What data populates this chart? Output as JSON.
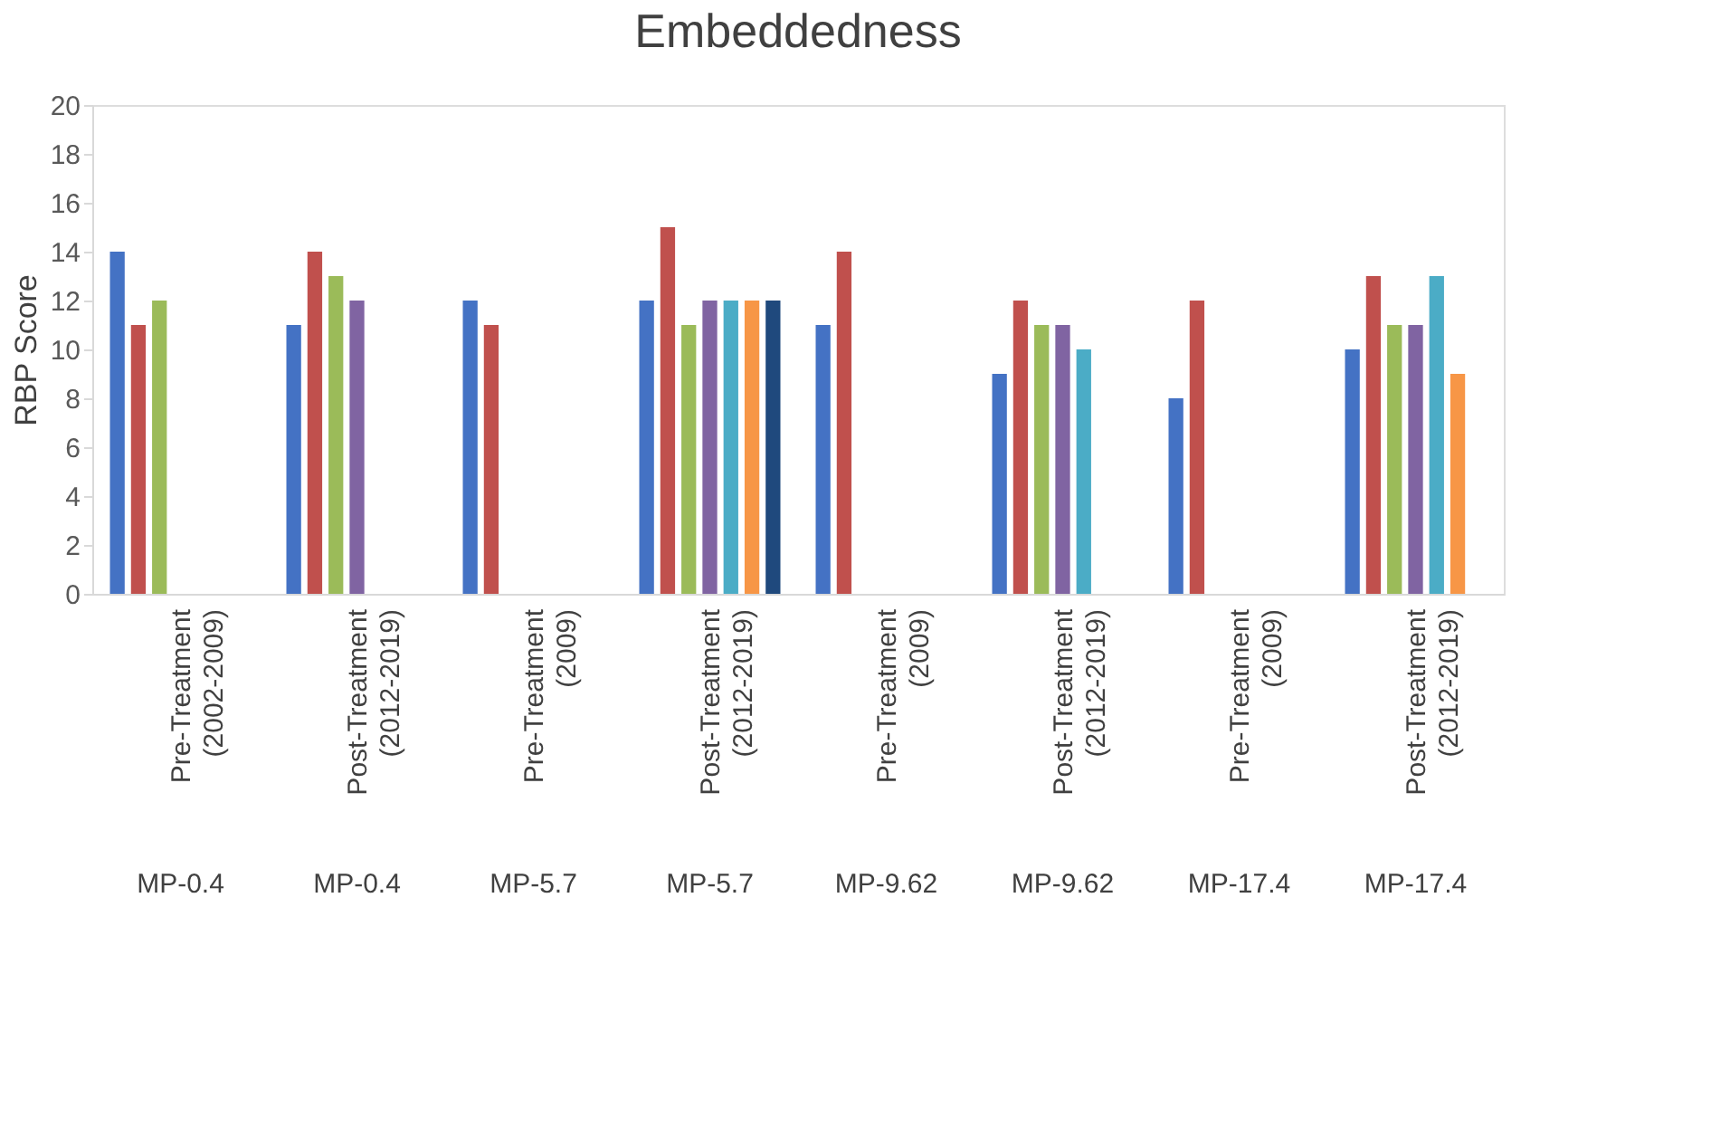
{
  "chart_data": {
    "type": "bar",
    "title": "Embeddedness",
    "ylabel": "RBP Score",
    "categories": [
      "Pre-Treatment (2002-2009)",
      "Post-Treatment (2012-2019)",
      "Pre-Treatment (2009)",
      "Post-Treatment (2012-2019)",
      "Pre-Treatment (2009)",
      "Post-Treatment (2012-2019)",
      "Pre-Treatment (2009)",
      "Post-Treatment (2012-2019)"
    ],
    "annotations": [
      "MP-0.4",
      "MP-0.4",
      "MP-5.7",
      "MP-5.7",
      "MP-9.62",
      "MP-9.62",
      "MP-17.4",
      "MP-17.4"
    ],
    "series": [
      {
        "color": "#4472c4",
        "values": [
          14,
          11,
          12,
          12,
          11,
          9,
          8,
          10
        ]
      },
      {
        "color": "#c0504d",
        "values": [
          11,
          14,
          11,
          15,
          14,
          12,
          12,
          13
        ]
      },
      {
        "color": "#9bbb59",
        "values": [
          12,
          13,
          null,
          11,
          null,
          11,
          null,
          11
        ]
      },
      {
        "color": "#8064a2",
        "values": [
          null,
          12,
          null,
          12,
          null,
          11,
          null,
          11
        ]
      },
      {
        "color": "#4bacc6",
        "values": [
          null,
          null,
          null,
          12,
          null,
          10,
          null,
          13
        ]
      },
      {
        "color": "#f79646",
        "values": [
          null,
          null,
          null,
          12,
          null,
          null,
          null,
          9
        ]
      },
      {
        "color": "#1f497d",
        "values": [
          null,
          null,
          null,
          12,
          null,
          null,
          null,
          null
        ]
      }
    ],
    "ylim": [
      0,
      20
    ],
    "yticks": [
      0,
      2,
      4,
      6,
      8,
      10,
      12,
      14,
      16,
      18,
      20
    ],
    "grid": false,
    "legend": false
  }
}
